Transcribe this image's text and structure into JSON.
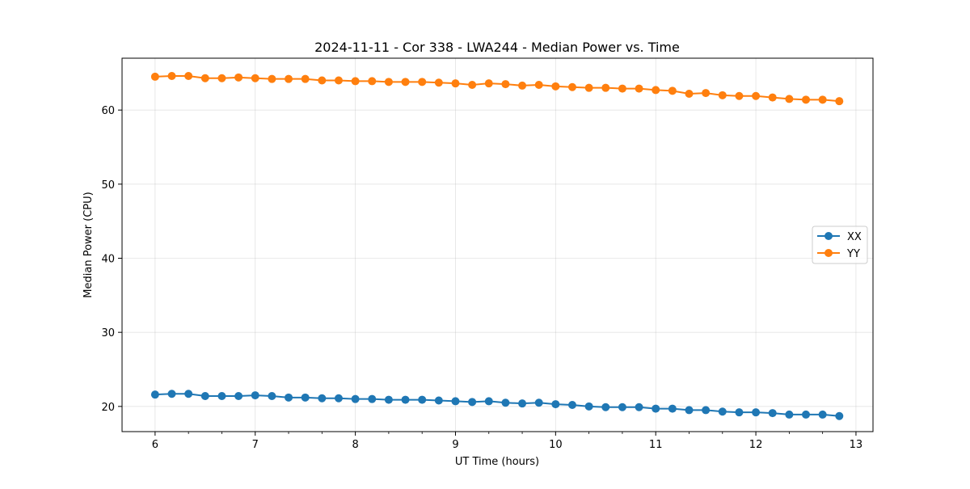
{
  "chart_data": {
    "type": "line",
    "title": "2024-11-11 - Cor 338 - LWA244 - Median Power vs. Time",
    "xlabel": "UT Time (hours)",
    "ylabel": "Median Power (CPU)",
    "xlim": [
      5.67,
      13.17
    ],
    "ylim": [
      16.6,
      67.0
    ],
    "xticks": [
      6,
      7,
      8,
      9,
      10,
      11,
      12,
      13
    ],
    "yticks": [
      20,
      30,
      40,
      50,
      60
    ],
    "grid": true,
    "legend_position": "center-right",
    "x": [
      6.0,
      6.1667,
      6.3333,
      6.5,
      6.6667,
      6.8333,
      7.0,
      7.1667,
      7.3333,
      7.5,
      7.6667,
      7.8333,
      8.0,
      8.1667,
      8.3333,
      8.5,
      8.6667,
      8.8333,
      9.0,
      9.1667,
      9.3333,
      9.5,
      9.6667,
      9.8333,
      10.0,
      10.1667,
      10.3333,
      10.5,
      10.6667,
      10.8333,
      11.0,
      11.1667,
      11.3333,
      11.5,
      11.6667,
      11.8333,
      12.0,
      12.1667,
      12.3333,
      12.5,
      12.6667,
      12.8333
    ],
    "series": [
      {
        "name": "XX",
        "color": "#1f77b4",
        "values": [
          21.6,
          21.7,
          21.7,
          21.4,
          21.4,
          21.4,
          21.5,
          21.4,
          21.2,
          21.2,
          21.1,
          21.1,
          21.0,
          21.0,
          20.9,
          20.9,
          20.9,
          20.8,
          20.7,
          20.6,
          20.7,
          20.5,
          20.4,
          20.5,
          20.3,
          20.2,
          20.0,
          19.9,
          19.9,
          19.9,
          19.7,
          19.7,
          19.5,
          19.5,
          19.3,
          19.2,
          19.2,
          19.1,
          18.9,
          18.9,
          18.9,
          18.7
        ]
      },
      {
        "name": "YY",
        "color": "#ff7f0e",
        "values": [
          64.5,
          64.6,
          64.6,
          64.3,
          64.3,
          64.4,
          64.3,
          64.2,
          64.2,
          64.2,
          64.0,
          64.0,
          63.9,
          63.9,
          63.8,
          63.8,
          63.8,
          63.7,
          63.6,
          63.4,
          63.6,
          63.5,
          63.3,
          63.4,
          63.2,
          63.1,
          63.0,
          63.0,
          62.9,
          62.9,
          62.7,
          62.6,
          62.2,
          62.3,
          62.0,
          61.9,
          61.9,
          61.7,
          61.5,
          61.4,
          61.4,
          61.2
        ]
      }
    ]
  }
}
